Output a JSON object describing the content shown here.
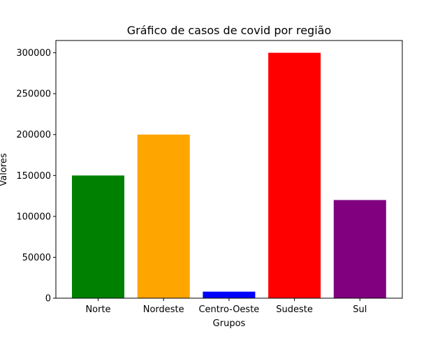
{
  "chart_data": {
    "type": "bar",
    "title": "Gráfico de casos de covid por região",
    "xlabel": "Grupos",
    "ylabel": "Valores",
    "categories": [
      "Norte",
      "Nordeste",
      "Centro-Oeste",
      "Sudeste",
      "Sul"
    ],
    "values": [
      150000,
      200000,
      8000,
      300000,
      120000
    ],
    "colors": [
      "#008000",
      "#ffa500",
      "#0000ff",
      "#ff0000",
      "#800080"
    ],
    "ylim": [
      0,
      315000
    ],
    "yticks": [
      0,
      50000,
      100000,
      150000,
      200000,
      250000,
      300000
    ],
    "ytick_labels": [
      "0",
      "50000",
      "100000",
      "150000",
      "200000",
      "250000",
      "300000"
    ],
    "grid": false,
    "legend": "none"
  }
}
